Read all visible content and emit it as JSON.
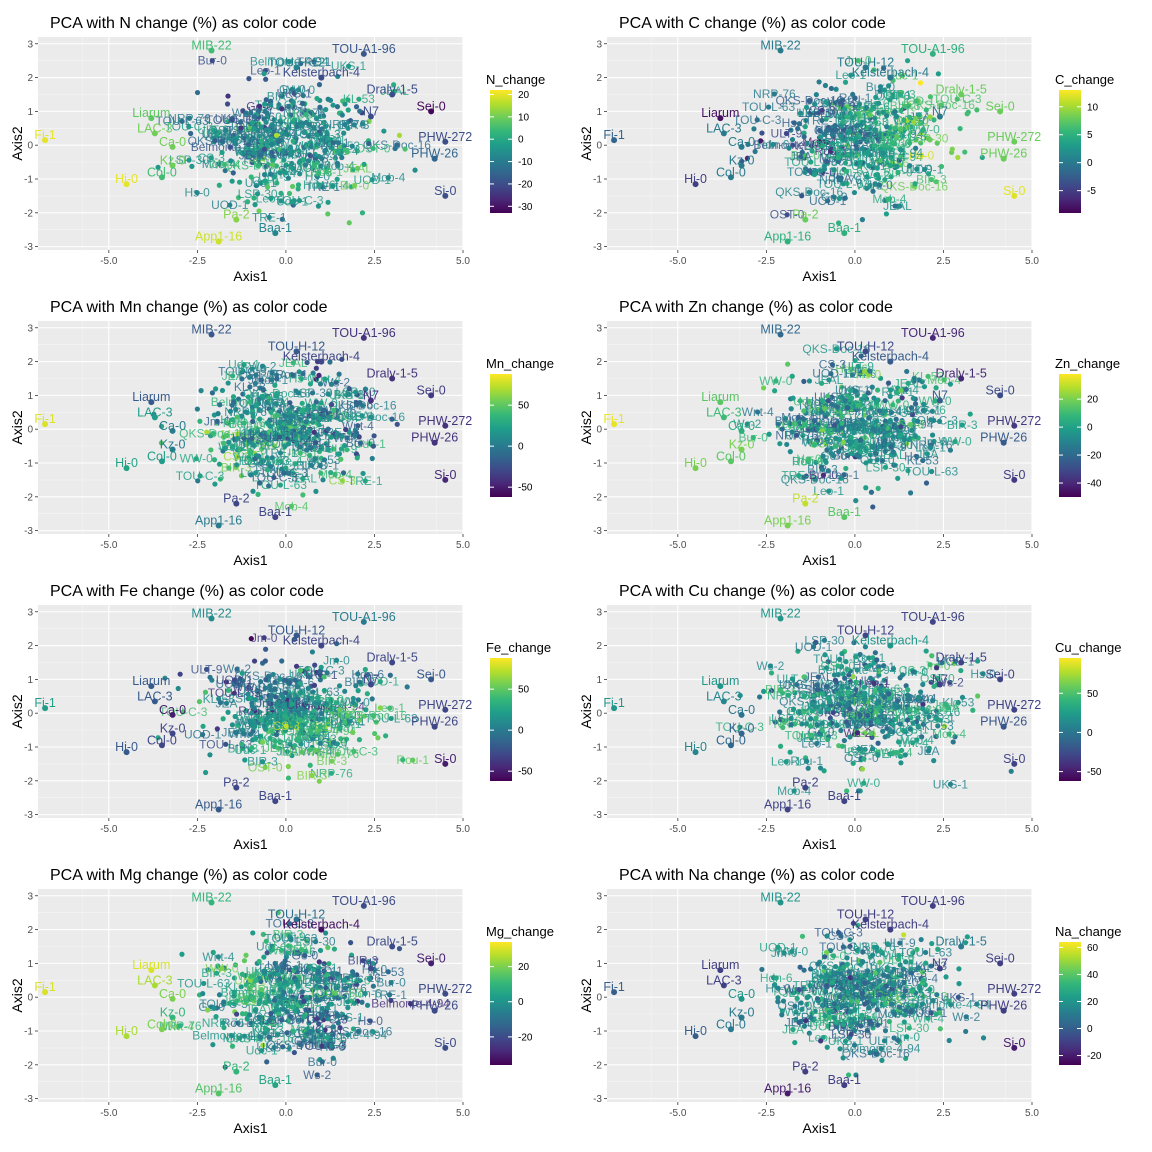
{
  "chart_data": [
    {
      "type": "scatter",
      "title": "PCA with N change (%) as color code",
      "xlabel": "Axis1",
      "ylabel": "Axis2",
      "xlim": [
        -7,
        5
      ],
      "ylim": [
        -3.1,
        3.2
      ],
      "x_ticks": [
        "-5.0",
        "-2.5",
        "0.0",
        "2.5",
        "5.0"
      ],
      "y_ticks": [
        "-3",
        "-2",
        "-1",
        "0",
        "1",
        "2",
        "3"
      ],
      "legend": {
        "title": "N_change",
        "ticks": [
          "20",
          "10",
          "0",
          "-10",
          "-20",
          "-30"
        ],
        "range": [
          -33,
          22
        ]
      },
      "labels": [
        [
          "Fi-1",
          -6.8,
          0.15,
          20
        ],
        [
          "Hi-0",
          -4.5,
          -1.15,
          20
        ],
        [
          "App1-16",
          -1.9,
          -2.85,
          18
        ],
        [
          "Pa-2",
          -1.4,
          -2.2,
          12
        ],
        [
          "Liarum",
          -3.8,
          0.8,
          8
        ],
        [
          "Baa-1",
          -0.3,
          -2.6,
          -8
        ],
        [
          "Si-0",
          4.5,
          -1.5,
          -20
        ],
        [
          "PHW-26",
          4.2,
          -0.4,
          -15
        ],
        [
          "N7",
          2.4,
          0.85,
          -20
        ],
        [
          "Sei-0",
          4.1,
          1.0,
          -32
        ],
        [
          "TOU-A1-96",
          2.2,
          2.7,
          -18
        ],
        [
          "MIB-22",
          -2.1,
          2.8,
          5
        ],
        [
          "LAC-3",
          -3.7,
          0.35,
          10
        ],
        [
          "Ca-0",
          -3.2,
          -0.05,
          10
        ],
        [
          "Kz-0",
          -3.2,
          -0.6,
          10
        ],
        [
          "Col-0",
          -3.5,
          -0.95,
          5
        ],
        [
          "TOU-H-12",
          0.3,
          2.3,
          -8
        ],
        [
          "Kelsterbach-4",
          1.0,
          2.0,
          -20
        ],
        [
          "Dralv-1-5",
          3.0,
          1.5,
          -20
        ],
        [
          "PHW-272",
          4.5,
          0.1,
          -20
        ]
      ],
      "seed": 11,
      "bias": [
        0.2,
        -0.2
      ],
      "n": 360
    },
    {
      "type": "scatter",
      "title": "PCA with C change (%) as color code",
      "xlabel": "Axis1",
      "ylabel": "Axis2",
      "xlim": [
        -7,
        5
      ],
      "ylim": [
        -3.1,
        3.2
      ],
      "x_ticks": [
        "-5.0",
        "-2.5",
        "0.0",
        "2.5",
        "5.0"
      ],
      "y_ticks": [
        "-3",
        "-2",
        "-1",
        "0",
        "1",
        "2",
        "3"
      ],
      "legend": {
        "title": "C_change",
        "ticks": [
          "10",
          "5",
          "0",
          "-5"
        ],
        "range": [
          -9,
          13
        ]
      },
      "labels": [
        [
          "Fi-1",
          -6.8,
          0.15,
          -2
        ],
        [
          "Hi-0",
          -4.5,
          -1.15,
          -5
        ],
        [
          "App1-16",
          -1.9,
          -2.85,
          5
        ],
        [
          "Pa-2",
          -1.4,
          -2.2,
          8
        ],
        [
          "Liarum",
          -3.8,
          0.8,
          -8
        ],
        [
          "Baa-1",
          -0.3,
          -2.6,
          5
        ],
        [
          "Si-0",
          4.5,
          -1.5,
          12
        ],
        [
          "PHW-26",
          4.2,
          -0.4,
          8
        ],
        [
          "N7",
          2.4,
          0.85,
          0
        ],
        [
          "Sei-0",
          4.1,
          1.0,
          8
        ],
        [
          "TOU-A1-96",
          2.2,
          2.7,
          5
        ],
        [
          "MIB-22",
          -2.1,
          2.8,
          0
        ],
        [
          "LAC-3",
          -3.7,
          0.35,
          0
        ],
        [
          "Ca-0",
          -3.2,
          -0.05,
          0
        ],
        [
          "Kz-0",
          -3.2,
          -0.6,
          0
        ],
        [
          "Col-0",
          -3.5,
          -0.95,
          0
        ],
        [
          "TOU-H-12",
          0.3,
          2.3,
          0
        ],
        [
          "Kelsterbach-4",
          1.0,
          2.0,
          0
        ],
        [
          "Dralv-1-5",
          3.0,
          1.5,
          8
        ],
        [
          "PHW-272",
          4.5,
          0.1,
          8
        ]
      ],
      "seed": 23,
      "bias": [
        0.6,
        0.1
      ],
      "n": 360
    },
    {
      "type": "scatter",
      "title": "PCA with Mn change (%) as color code",
      "xlabel": "Axis1",
      "ylabel": "Axis2",
      "xlim": [
        -7,
        5
      ],
      "ylim": [
        -3.1,
        3.2
      ],
      "x_ticks": [
        "-5.0",
        "-2.5",
        "0.0",
        "2.5",
        "5.0"
      ],
      "y_ticks": [
        "-3",
        "-2",
        "-1",
        "0",
        "1",
        "2",
        "3"
      ],
      "legend": {
        "title": "Mn_change",
        "ticks": [
          "50",
          "0",
          "-50"
        ],
        "range": [
          -62,
          88
        ]
      },
      "labels": [
        [
          "Fi-1",
          -6.8,
          0.15,
          80
        ],
        [
          "Hi-0",
          -4.5,
          -1.15,
          25
        ],
        [
          "App1-16",
          -1.9,
          -2.85,
          0
        ],
        [
          "Pa-2",
          -1.4,
          -2.2,
          -30
        ],
        [
          "Liarum",
          -3.8,
          0.8,
          -20
        ],
        [
          "Baa-1",
          -0.3,
          -2.6,
          -30
        ],
        [
          "Si-0",
          4.5,
          -1.5,
          -45
        ],
        [
          "PHW-26",
          4.2,
          -0.4,
          -40
        ],
        [
          "N7",
          2.4,
          0.85,
          -40
        ],
        [
          "Sei-0",
          4.1,
          1.0,
          -35
        ],
        [
          "TOU-A1-96",
          2.2,
          2.7,
          -40
        ],
        [
          "MIB-22",
          -2.1,
          2.8,
          -20
        ],
        [
          "LAC-3",
          -3.7,
          0.35,
          20
        ],
        [
          "Ca-0",
          -3.2,
          -0.05,
          0
        ],
        [
          "Kz-0",
          -3.2,
          -0.6,
          0
        ],
        [
          "Col-0",
          -3.5,
          -0.95,
          20
        ],
        [
          "TOU-H-12",
          0.3,
          2.3,
          -20
        ],
        [
          "Kelsterbach-4",
          1.0,
          2.0,
          -30
        ],
        [
          "Dralv-1-5",
          3.0,
          1.5,
          -40
        ],
        [
          "PHW-272",
          4.5,
          0.1,
          -40
        ]
      ],
      "seed": 37,
      "bias": [
        -0.2,
        -0.3
      ],
      "n": 360
    },
    {
      "type": "scatter",
      "title": "PCA with Zn change (%) as color code",
      "xlabel": "Axis1",
      "ylabel": "Axis2",
      "xlim": [
        -7,
        5
      ],
      "ylim": [
        -3.1,
        3.2
      ],
      "x_ticks": [
        "-5.0",
        "-2.5",
        "0.0",
        "2.5",
        "5.0"
      ],
      "y_ticks": [
        "-3",
        "-2",
        "-1",
        "0",
        "1",
        "2",
        "3"
      ],
      "legend": {
        "title": "Zn_change",
        "ticks": [
          "20",
          "0",
          "-20",
          "-40"
        ],
        "range": [
          -50,
          38
        ]
      },
      "labels": [
        [
          "Fi-1",
          -6.8,
          0.15,
          35
        ],
        [
          "Hi-0",
          -4.5,
          -1.15,
          20
        ],
        [
          "App1-16",
          -1.9,
          -2.85,
          20
        ],
        [
          "Pa-2",
          -1.4,
          -2.2,
          30
        ],
        [
          "Liarum",
          -3.8,
          0.8,
          15
        ],
        [
          "Baa-1",
          -0.3,
          -2.6,
          15
        ],
        [
          "Si-0",
          4.5,
          -1.5,
          -35
        ],
        [
          "PHW-26",
          4.2,
          -0.4,
          -25
        ],
        [
          "N7",
          2.4,
          0.85,
          -25
        ],
        [
          "Sei-0",
          4.1,
          1.0,
          -30
        ],
        [
          "TOU-A1-96",
          2.2,
          2.7,
          -40
        ],
        [
          "MIB-22",
          -2.1,
          2.8,
          -20
        ],
        [
          "LAC-3",
          -3.7,
          0.35,
          10
        ],
        [
          "Ca-0",
          -3.2,
          -0.05,
          5
        ],
        [
          "Kz-0",
          -3.2,
          -0.6,
          20
        ],
        [
          "Col-0",
          -3.5,
          -0.95,
          15
        ],
        [
          "TOU-H-12",
          0.3,
          2.3,
          -30
        ],
        [
          "Kelsterbach-4",
          1.0,
          2.0,
          -25
        ],
        [
          "Dralv-1-5",
          3.0,
          1.5,
          -40
        ],
        [
          "PHW-272",
          4.5,
          0.1,
          -35
        ]
      ],
      "seed": 41,
      "bias": [
        -0.1,
        0.1
      ],
      "n": 360
    },
    {
      "type": "scatter",
      "title": "PCA with Fe change (%) as color code",
      "xlabel": "Axis1",
      "ylabel": "Axis2",
      "xlim": [
        -7,
        5
      ],
      "ylim": [
        -3.1,
        3.2
      ],
      "x_ticks": [
        "-5.0",
        "-2.5",
        "0.0",
        "2.5",
        "5.0"
      ],
      "y_ticks": [
        "-3",
        "-2",
        "-1",
        "0",
        "1",
        "2",
        "3"
      ],
      "legend": {
        "title": "Fe_change",
        "ticks": [
          "50",
          "0",
          "-50"
        ],
        "range": [
          -62,
          88
        ]
      },
      "labels": [
        [
          "Fi-1",
          -6.8,
          0.15,
          20
        ],
        [
          "Hi-0",
          -4.5,
          -1.15,
          -20
        ],
        [
          "App1-16",
          -1.9,
          -2.85,
          -20
        ],
        [
          "Pa-2",
          -1.4,
          -2.2,
          -30
        ],
        [
          "Liarum",
          -3.8,
          0.8,
          -20
        ],
        [
          "Baa-1",
          -0.3,
          -2.6,
          -30
        ],
        [
          "Si-0",
          4.5,
          -1.5,
          -50
        ],
        [
          "PHW-26",
          4.2,
          -0.4,
          -30
        ],
        [
          "N7",
          2.4,
          0.85,
          -30
        ],
        [
          "Sei-0",
          4.1,
          1.0,
          -20
        ],
        [
          "TOU-A1-96",
          2.2,
          2.7,
          0
        ],
        [
          "MIB-22",
          -2.1,
          2.8,
          10
        ],
        [
          "LAC-3",
          -3.7,
          0.35,
          -20
        ],
        [
          "Ca-0",
          -3.2,
          -0.05,
          -50
        ],
        [
          "Kz-0",
          -3.2,
          -0.6,
          -30
        ],
        [
          "Col-0",
          -3.5,
          -0.95,
          -30
        ],
        [
          "TOU-H-12",
          0.3,
          2.3,
          -20
        ],
        [
          "Kelsterbach-4",
          1.0,
          2.0,
          -30
        ],
        [
          "Dralv-1-5",
          3.0,
          1.5,
          -30
        ],
        [
          "PHW-272",
          4.5,
          0.1,
          -30
        ]
      ],
      "seed": 53,
      "bias": [
        0.3,
        -0.5
      ],
      "n": 360
    },
    {
      "type": "scatter",
      "title": "PCA with Cu change (%) as color code",
      "xlabel": "Axis1",
      "ylabel": "Axis2",
      "xlim": [
        -7,
        5
      ],
      "ylim": [
        -3.1,
        3.2
      ],
      "x_ticks": [
        "-5.0",
        "-2.5",
        "0.0",
        "2.5",
        "5.0"
      ],
      "y_ticks": [
        "-3",
        "-2",
        "-1",
        "0",
        "1",
        "2",
        "3"
      ],
      "legend": {
        "title": "Cu_change",
        "ticks": [
          "50",
          "0",
          "-50"
        ],
        "range": [
          -62,
          95
        ]
      },
      "labels": [
        [
          "Fi-1",
          -6.8,
          0.15,
          20
        ],
        [
          "Hi-0",
          -4.5,
          -1.15,
          10
        ],
        [
          "App1-16",
          -1.9,
          -2.85,
          -30
        ],
        [
          "Pa-2",
          -1.4,
          -2.2,
          -30
        ],
        [
          "Liarum",
          -3.8,
          0.8,
          20
        ],
        [
          "Baa-1",
          -0.3,
          -2.6,
          -30
        ],
        [
          "Si-0",
          4.5,
          -1.5,
          -30
        ],
        [
          "PHW-26",
          4.2,
          -0.4,
          -20
        ],
        [
          "N7",
          2.4,
          0.85,
          -30
        ],
        [
          "Sei-0",
          4.1,
          1.0,
          -30
        ],
        [
          "TOU-A1-96",
          2.2,
          2.7,
          -30
        ],
        [
          "MIB-22",
          -2.1,
          2.8,
          20
        ],
        [
          "LAC-3",
          -3.7,
          0.35,
          10
        ],
        [
          "Ca-0",
          -3.2,
          -0.05,
          0
        ],
        [
          "Kz-0",
          -3.2,
          -0.6,
          -10
        ],
        [
          "Col-0",
          -3.5,
          -0.95,
          -10
        ],
        [
          "TOU-H-12",
          0.3,
          2.3,
          -30
        ],
        [
          "Kelsterbach-4",
          1.0,
          2.0,
          20
        ],
        [
          "Dralv-1-5",
          3.0,
          1.5,
          -30
        ],
        [
          "PHW-272",
          4.5,
          0.1,
          -30
        ]
      ],
      "seed": 67,
      "bias": [
        0.0,
        -0.1
      ],
      "n": 360
    },
    {
      "type": "scatter",
      "title": "PCA with Mg change (%) as color code",
      "xlabel": "Axis1",
      "ylabel": "Axis2",
      "xlim": [
        -7,
        5
      ],
      "ylim": [
        -3.1,
        3.2
      ],
      "x_ticks": [
        "-5.0",
        "-2.5",
        "0.0",
        "2.5",
        "5.0"
      ],
      "y_ticks": [
        "-3",
        "-2",
        "-1",
        "0",
        "1",
        "2",
        "3"
      ],
      "legend": {
        "title": "Mg_change",
        "ticks": [
          "20",
          "0",
          "-20"
        ],
        "range": [
          -36,
          34
        ]
      },
      "labels": [
        [
          "Fi-1",
          -6.8,
          0.15,
          30
        ],
        [
          "Hi-0",
          -4.5,
          -1.15,
          25
        ],
        [
          "App1-16",
          -1.9,
          -2.85,
          15
        ],
        [
          "Pa-2",
          -1.4,
          -2.2,
          10
        ],
        [
          "Liarum",
          -3.8,
          0.8,
          30
        ],
        [
          "Baa-1",
          -0.3,
          -2.6,
          5
        ],
        [
          "Si-0",
          4.5,
          -1.5,
          -20
        ],
        [
          "PHW-26",
          4.2,
          -0.4,
          -20
        ],
        [
          "N7",
          2.4,
          0.85,
          -20
        ],
        [
          "Sei-0",
          4.1,
          1.0,
          -30
        ],
        [
          "TOU-A1-96",
          2.2,
          2.7,
          -20
        ],
        [
          "MIB-22",
          -2.1,
          2.8,
          10
        ],
        [
          "LAC-3",
          -3.7,
          0.35,
          25
        ],
        [
          "Ca-0",
          -3.2,
          -0.05,
          20
        ],
        [
          "Kz-0",
          -3.2,
          -0.6,
          10
        ],
        [
          "Col-0",
          -3.5,
          -0.95,
          20
        ],
        [
          "TOU-H-12",
          0.3,
          2.3,
          -10
        ],
        [
          "Kelsterbach-4",
          1.0,
          2.0,
          -33
        ],
        [
          "Dralv-1-5",
          3.0,
          1.5,
          -20
        ],
        [
          "PHW-272",
          4.5,
          0.1,
          -20
        ]
      ],
      "seed": 79,
      "bias": [
        -0.3,
        0.1
      ],
      "n": 360
    },
    {
      "type": "scatter",
      "title": "PCA with Na change (%) as color code",
      "xlabel": "Axis1",
      "ylabel": "Axis2",
      "xlim": [
        -7,
        5
      ],
      "ylim": [
        -3.1,
        3.2
      ],
      "x_ticks": [
        "-5.0",
        "-2.5",
        "0.0",
        "2.5",
        "5.0"
      ],
      "y_ticks": [
        "-3",
        "-2",
        "-1",
        "0",
        "1",
        "2",
        "3"
      ],
      "legend": {
        "title": "Na_change",
        "ticks": [
          "60",
          "40",
          "20",
          "0",
          "-20"
        ],
        "range": [
          -27,
          64
        ]
      },
      "labels": [
        [
          "Fi-1",
          -6.8,
          0.15,
          0
        ],
        [
          "Hi-0",
          -4.5,
          -1.15,
          0
        ],
        [
          "App1-16",
          -1.9,
          -2.85,
          -20
        ],
        [
          "Pa-2",
          -1.4,
          -2.2,
          -10
        ],
        [
          "Liarum",
          -3.8,
          0.8,
          -10
        ],
        [
          "Baa-1",
          -0.3,
          -2.6,
          -10
        ],
        [
          "Si-0",
          4.5,
          -1.5,
          -20
        ],
        [
          "PHW-26",
          4.2,
          -0.4,
          -10
        ],
        [
          "N7",
          2.4,
          0.85,
          -10
        ],
        [
          "Sei-0",
          4.1,
          1.0,
          -10
        ],
        [
          "TOU-A1-96",
          2.2,
          2.7,
          -10
        ],
        [
          "MIB-22",
          -2.1,
          2.8,
          20
        ],
        [
          "LAC-3",
          -3.7,
          0.35,
          -10
        ],
        [
          "Ca-0",
          -3.2,
          -0.05,
          20
        ],
        [
          "Kz-0",
          -3.2,
          -0.6,
          10
        ],
        [
          "Col-0",
          -3.5,
          -0.95,
          10
        ],
        [
          "TOU-H-12",
          0.3,
          2.3,
          -10
        ],
        [
          "Kelsterbach-4",
          1.0,
          2.0,
          -10
        ],
        [
          "Dralv-1-5",
          3.0,
          1.5,
          10
        ],
        [
          "PHW-272",
          4.5,
          0.1,
          -10
        ]
      ],
      "seed": 97,
      "bias": [
        0.1,
        0.0
      ],
      "n": 360
    }
  ]
}
